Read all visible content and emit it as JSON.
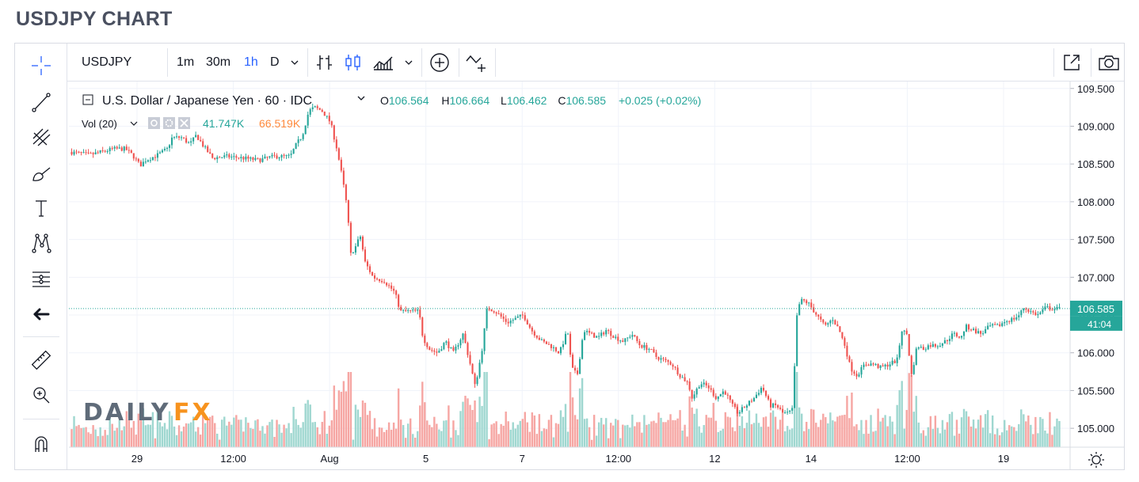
{
  "page": {
    "title": "USDJPY CHART"
  },
  "toolbar": {
    "symbol": "USDJPY",
    "intervals": [
      {
        "label": "1m",
        "active": false
      },
      {
        "label": "30m",
        "active": false
      },
      {
        "label": "1h",
        "active": true
      },
      {
        "label": "D",
        "active": false
      }
    ],
    "interval_dropdown_icon": "chevron-down-icon",
    "chart_style_icons": [
      "bar-chart-icon",
      "candlestick-icon",
      "area-chart-icon"
    ],
    "buttons": [
      "compare-plus-icon",
      "indicators-icon",
      "popout-icon",
      "camera-icon"
    ]
  },
  "left_tools": [
    "crosshair-icon",
    "trend-line-icon",
    "pitchfork-icon",
    "brush-icon",
    "text-icon",
    "pattern-icon",
    "fib-measure-icon",
    "back-arrow-icon",
    "ruler-icon",
    "zoom-in-icon",
    "magnet-icon"
  ],
  "legend": {
    "symbol_name": "U.S. Dollar / Japanese Yen · 60 · IDC",
    "open_label": "O",
    "open": "106.564",
    "high_label": "H",
    "high": "106.664",
    "low_label": "L",
    "low": "106.462",
    "close_label": "C",
    "close": "106.585",
    "change": "+0.025 (+0.02%)",
    "vol_label": "Vol (20)",
    "vol_value": "41.747K",
    "vol_ma": "66.519K"
  },
  "watermark": {
    "text_a": "DAILY",
    "text_b": "FX"
  },
  "colors": {
    "up": "#26a69a",
    "down": "#ef5350",
    "vol_up": "#9fd7d0",
    "vol_down": "#f6a6a3",
    "accent": "#2962ff",
    "ma": "#ff8a3d"
  },
  "chart_data": {
    "type": "candlestick",
    "title": "",
    "x_tick_labels": [
      "29",
      "12:00",
      "Aug",
      "5",
      "7",
      "12:00",
      "12",
      "14",
      "12:00",
      "19"
    ],
    "y_tick_labels": [
      "109.500",
      "109.000",
      "108.500",
      "108.000",
      "107.500",
      "107.000",
      "106.500",
      "106.000",
      "105.500",
      "105.000"
    ],
    "ylim": [
      104.75,
      109.55
    ],
    "last_price": "106.585",
    "countdown": "41:04",
    "grid": true,
    "price_path": [
      [
        0,
        108.66
      ],
      [
        25,
        108.62
      ],
      [
        55,
        108.7
      ],
      [
        70,
        108.7
      ],
      [
        80,
        108.6
      ],
      [
        88,
        108.48
      ],
      [
        95,
        108.55
      ],
      [
        110,
        108.62
      ],
      [
        122,
        108.7
      ],
      [
        128,
        108.85
      ],
      [
        140,
        108.85
      ],
      [
        150,
        108.76
      ],
      [
        158,
        108.88
      ],
      [
        168,
        108.72
      ],
      [
        178,
        108.58
      ],
      [
        195,
        108.6
      ],
      [
        215,
        108.58
      ],
      [
        235,
        108.55
      ],
      [
        255,
        108.6
      ],
      [
        275,
        108.6
      ],
      [
        282,
        108.75
      ],
      [
        290,
        108.88
      ],
      [
        298,
        109.2
      ],
      [
        305,
        109.25
      ],
      [
        315,
        109.2
      ],
      [
        325,
        109.05
      ],
      [
        333,
        108.7
      ],
      [
        340,
        108.3
      ],
      [
        346,
        107.9
      ],
      [
        350,
        107.3
      ],
      [
        356,
        107.4
      ],
      [
        362,
        107.55
      ],
      [
        368,
        107.2
      ],
      [
        378,
        107.0
      ],
      [
        392,
        106.95
      ],
      [
        405,
        106.8
      ],
      [
        412,
        106.55
      ],
      [
        425,
        106.55
      ],
      [
        435,
        106.55
      ],
      [
        440,
        106.2
      ],
      [
        448,
        106.05
      ],
      [
        458,
        106.0
      ],
      [
        468,
        106.15
      ],
      [
        478,
        106.0
      ],
      [
        490,
        106.25
      ],
      [
        500,
        105.8
      ],
      [
        505,
        105.55
      ],
      [
        513,
        106.0
      ],
      [
        520,
        106.6
      ],
      [
        530,
        106.55
      ],
      [
        545,
        106.4
      ],
      [
        555,
        106.45
      ],
      [
        565,
        106.5
      ],
      [
        575,
        106.3
      ],
      [
        588,
        106.15
      ],
      [
        598,
        106.1
      ],
      [
        610,
        106.0
      ],
      [
        620,
        106.3
      ],
      [
        625,
        105.8
      ],
      [
        632,
        105.7
      ],
      [
        640,
        106.3
      ],
      [
        648,
        106.25
      ],
      [
        658,
        106.2
      ],
      [
        668,
        106.3
      ],
      [
        680,
        106.2
      ],
      [
        690,
        106.15
      ],
      [
        700,
        106.25
      ],
      [
        710,
        106.1
      ],
      [
        722,
        106.05
      ],
      [
        730,
        105.95
      ],
      [
        740,
        105.9
      ],
      [
        750,
        105.85
      ],
      [
        760,
        105.7
      ],
      [
        770,
        105.6
      ],
      [
        775,
        105.4
      ],
      [
        785,
        105.6
      ],
      [
        795,
        105.55
      ],
      [
        805,
        105.4
      ],
      [
        815,
        105.5
      ],
      [
        825,
        105.3
      ],
      [
        832,
        105.2
      ],
      [
        842,
        105.3
      ],
      [
        852,
        105.4
      ],
      [
        862,
        105.55
      ],
      [
        872,
        105.3
      ],
      [
        880,
        105.3
      ],
      [
        888,
        105.2
      ],
      [
        895,
        105.2
      ],
      [
        900,
        105.25
      ],
      [
        906,
        106.6
      ],
      [
        912,
        106.7
      ],
      [
        920,
        106.65
      ],
      [
        930,
        106.5
      ],
      [
        940,
        106.35
      ],
      [
        950,
        106.45
      ],
      [
        958,
        106.3
      ],
      [
        965,
        106.1
      ],
      [
        972,
        105.8
      ],
      [
        980,
        105.7
      ],
      [
        990,
        105.85
      ],
      [
        1000,
        105.85
      ],
      [
        1010,
        105.8
      ],
      [
        1020,
        105.85
      ],
      [
        1030,
        105.9
      ],
      [
        1036,
        106.3
      ],
      [
        1042,
        106.25
      ],
      [
        1048,
        105.7
      ],
      [
        1055,
        106.1
      ],
      [
        1062,
        106.05
      ],
      [
        1070,
        106.1
      ],
      [
        1080,
        106.1
      ],
      [
        1090,
        106.15
      ],
      [
        1100,
        106.25
      ],
      [
        1110,
        106.2
      ],
      [
        1115,
        106.35
      ],
      [
        1125,
        106.3
      ],
      [
        1135,
        106.25
      ],
      [
        1145,
        106.35
      ],
      [
        1155,
        106.35
      ],
      [
        1165,
        106.42
      ],
      [
        1175,
        106.45
      ],
      [
        1182,
        106.5
      ],
      [
        1188,
        106.6
      ],
      [
        1195,
        106.55
      ],
      [
        1205,
        106.5
      ],
      [
        1215,
        106.6
      ],
      [
        1225,
        106.58
      ],
      [
        1232,
        106.585
      ]
    ]
  }
}
